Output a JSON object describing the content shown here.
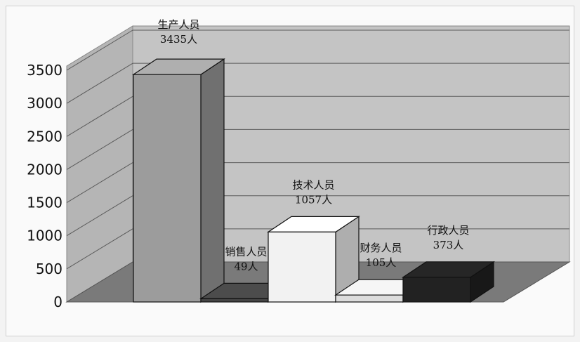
{
  "chart_data": {
    "type": "bar",
    "style": "3d",
    "categories": [
      "生产人员",
      "销售人员",
      "技术人员",
      "财务人员",
      "行政人员"
    ],
    "values": [
      3435,
      49,
      1057,
      105,
      373
    ],
    "value_labels": [
      "3435人",
      "49人",
      "1057人",
      "105人",
      "373人"
    ],
    "yticks": [
      0,
      500,
      1000,
      1500,
      2000,
      2500,
      3000,
      3500
    ],
    "ylim": [
      0,
      3500
    ],
    "grid": true,
    "title": "",
    "xlabel": "",
    "ylabel": "",
    "colors": {
      "background_wall": "#c4c4c4",
      "side_wall": "#b5b5b5",
      "floor": "#7a7a7a",
      "bars": [
        "#9c9c9c",
        "#444444",
        "#f2f2f2",
        "#dcdcdc",
        "#222222"
      ]
    }
  }
}
